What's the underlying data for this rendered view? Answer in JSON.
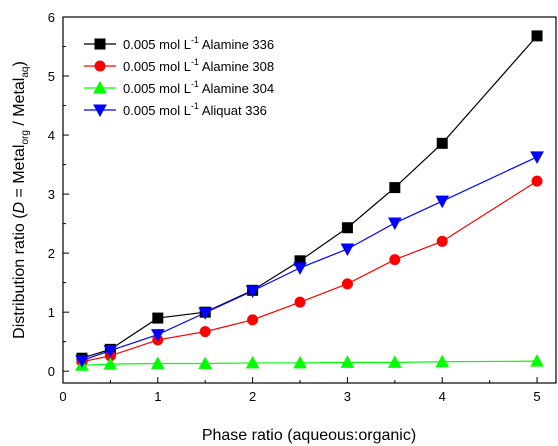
{
  "chart_data": {
    "type": "line",
    "xlabel": "Phase ratio (aqueous:organic)",
    "ylabel": {
      "prefix": "Distribution ratio (",
      "italic": "D",
      "mid": " = Metal",
      "sub1": "org",
      "slash": " / Metal",
      "sub2": "aq",
      "suffix": ")"
    },
    "xlim": [
      0,
      5.2
    ],
    "ylim": [
      -0.2,
      6
    ],
    "xticks": [
      "0",
      "1",
      "2",
      "3",
      "4",
      "5"
    ],
    "yticks": [
      "0",
      "1",
      "2",
      "3",
      "4",
      "5",
      "6"
    ],
    "grid": false,
    "legend_position": "top-left",
    "series": [
      {
        "name_prefix": "0.005 mol L",
        "name_sup": "-1",
        "name_suffix": " Alamine 336",
        "color": "#000000",
        "marker": "square",
        "x": [
          0.2,
          0.5,
          1,
          1.5,
          2,
          2.5,
          3,
          3.5,
          4,
          5
        ],
        "y": [
          0.22,
          0.37,
          0.9,
          1.0,
          1.37,
          1.87,
          2.43,
          3.11,
          3.86,
          5.68
        ]
      },
      {
        "name_prefix": "0.005 mol L",
        "name_sup": "-1",
        "name_suffix": " Alamine 308",
        "color": "#ff0000",
        "marker": "circle",
        "x": [
          0.2,
          0.5,
          1,
          1.5,
          2,
          2.5,
          3,
          3.5,
          4,
          5
        ],
        "y": [
          0.16,
          0.26,
          0.53,
          0.67,
          0.87,
          1.17,
          1.48,
          1.89,
          2.2,
          3.22
        ]
      },
      {
        "name_prefix": "0.005 mol L",
        "name_sup": "-1",
        "name_suffix": " Alamine 304",
        "color": "#00ff00",
        "marker": "triangle-up",
        "x": [
          0.2,
          0.5,
          1,
          1.5,
          2,
          2.5,
          3,
          3.5,
          4,
          5
        ],
        "y": [
          0.1,
          0.12,
          0.13,
          0.13,
          0.14,
          0.14,
          0.15,
          0.15,
          0.16,
          0.17
        ]
      },
      {
        "name_prefix": "0.005 mol L",
        "name_sup": "-1",
        "name_suffix": " Aliquat 336",
        "color": "#0000ff",
        "marker": "triangle-down",
        "x": [
          0.2,
          0.5,
          1,
          1.5,
          2,
          2.5,
          3,
          3.5,
          4,
          5
        ],
        "y": [
          0.18,
          0.35,
          0.62,
          0.99,
          1.36,
          1.75,
          2.07,
          2.51,
          2.88,
          3.63
        ]
      }
    ]
  }
}
